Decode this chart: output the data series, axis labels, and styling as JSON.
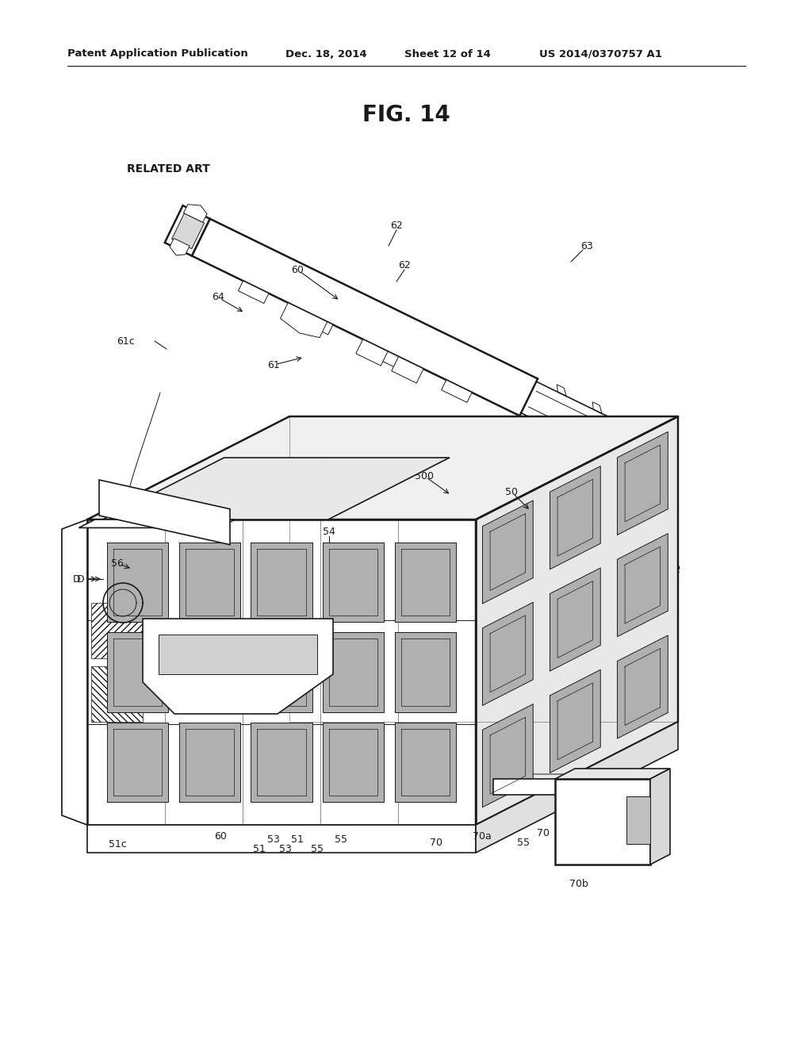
{
  "header_left": "Patent Application Publication",
  "header_date": "Dec. 18, 2014",
  "header_sheet": "Sheet 12 of 14",
  "header_right": "US 2014/0370757 A1",
  "figure_title": "FIG. 14",
  "related_art_label": "RELATED ART",
  "bg_color": "#ffffff",
  "line_color": "#1a1a1a",
  "header_fontsize": 9.5,
  "title_fontsize": 20,
  "label_fontsize": 9
}
